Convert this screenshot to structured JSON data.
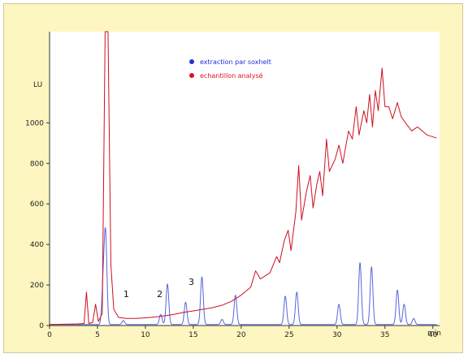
{
  "chart_data": {
    "type": "line",
    "ylabel": "LU",
    "xunit": "min",
    "xlim": [
      0,
      40
    ],
    "ylim": [
      0,
      1450
    ],
    "x_ticks": [
      "0",
      "5",
      "10",
      "15",
      "20",
      "25",
      "30",
      "35",
      "40"
    ],
    "y_ticks": [
      "0",
      "200",
      "400",
      "600",
      "800",
      "1000"
    ],
    "legend": [
      {
        "name": "extraction par soxhelt",
        "color": "#2030e0"
      },
      {
        "name": "echantillon analysé",
        "color": "#e01020"
      }
    ],
    "annotations": [
      {
        "text": "1",
        "x": 8.0,
        "y": 140
      },
      {
        "text": "2",
        "x": 11.5,
        "y": 140
      },
      {
        "text": "3",
        "x": 14.8,
        "y": 200
      }
    ],
    "series": [
      {
        "name": "extraction par soxhelt",
        "color": "#5566dd",
        "baseline": 5,
        "peaks": [
          {
            "x": 5.85,
            "h": 430
          },
          {
            "x": 5.6,
            "h": 200
          },
          {
            "x": 7.7,
            "h": 20
          },
          {
            "x": 11.6,
            "h": 50
          },
          {
            "x": 12.3,
            "h": 200
          },
          {
            "x": 14.2,
            "h": 110
          },
          {
            "x": 15.9,
            "h": 235
          },
          {
            "x": 18.0,
            "h": 25
          },
          {
            "x": 19.4,
            "h": 145
          },
          {
            "x": 24.6,
            "h": 140
          },
          {
            "x": 25.8,
            "h": 160
          },
          {
            "x": 30.2,
            "h": 100
          },
          {
            "x": 32.4,
            "h": 305
          },
          {
            "x": 33.6,
            "h": 285
          },
          {
            "x": 36.3,
            "h": 170
          },
          {
            "x": 37.0,
            "h": 100
          },
          {
            "x": 38.0,
            "h": 30
          }
        ]
      },
      {
        "name": "echantillon analysé",
        "color": "#cc1020",
        "points": [
          [
            0,
            5
          ],
          [
            3,
            8
          ],
          [
            3.6,
            10
          ],
          [
            3.85,
            165
          ],
          [
            4.1,
            10
          ],
          [
            4.5,
            15
          ],
          [
            4.8,
            105
          ],
          [
            5.1,
            20
          ],
          [
            5.5,
            60
          ],
          [
            5.8,
            1450
          ],
          [
            6.1,
            1450
          ],
          [
            6.4,
            300
          ],
          [
            6.7,
            80
          ],
          [
            7.2,
            40
          ],
          [
            8,
            35
          ],
          [
            9,
            35
          ],
          [
            10,
            38
          ],
          [
            11,
            42
          ],
          [
            12,
            48
          ],
          [
            13,
            55
          ],
          [
            14,
            65
          ],
          [
            15,
            72
          ],
          [
            16,
            80
          ],
          [
            17,
            88
          ],
          [
            18,
            100
          ],
          [
            19,
            120
          ],
          [
            19.5,
            135
          ],
          [
            20,
            150
          ],
          [
            21,
            190
          ],
          [
            21.5,
            270
          ],
          [
            22,
            230
          ],
          [
            23,
            260
          ],
          [
            23.7,
            340
          ],
          [
            24,
            310
          ],
          [
            24.5,
            420
          ],
          [
            24.9,
            470
          ],
          [
            25.2,
            370
          ],
          [
            25.7,
            560
          ],
          [
            26.0,
            790
          ],
          [
            26.3,
            520
          ],
          [
            26.8,
            660
          ],
          [
            27.2,
            740
          ],
          [
            27.5,
            580
          ],
          [
            27.9,
            700
          ],
          [
            28.2,
            760
          ],
          [
            28.5,
            640
          ],
          [
            28.9,
            920
          ],
          [
            29.2,
            760
          ],
          [
            29.8,
            820
          ],
          [
            30.2,
            890
          ],
          [
            30.6,
            800
          ],
          [
            31.2,
            960
          ],
          [
            31.6,
            920
          ],
          [
            32.0,
            1080
          ],
          [
            32.3,
            940
          ],
          [
            32.8,
            1060
          ],
          [
            33.1,
            1000
          ],
          [
            33.4,
            1140
          ],
          [
            33.7,
            980
          ],
          [
            34.0,
            1160
          ],
          [
            34.3,
            1060
          ],
          [
            34.7,
            1270
          ],
          [
            35.0,
            1080
          ],
          [
            35.4,
            1080
          ],
          [
            35.8,
            1020
          ],
          [
            36.3,
            1100
          ],
          [
            36.7,
            1030
          ],
          [
            37.3,
            990
          ],
          [
            37.8,
            960
          ],
          [
            38.4,
            980
          ],
          [
            38.9,
            960
          ],
          [
            39.4,
            940
          ],
          [
            40.4,
            925
          ]
        ]
      }
    ]
  }
}
